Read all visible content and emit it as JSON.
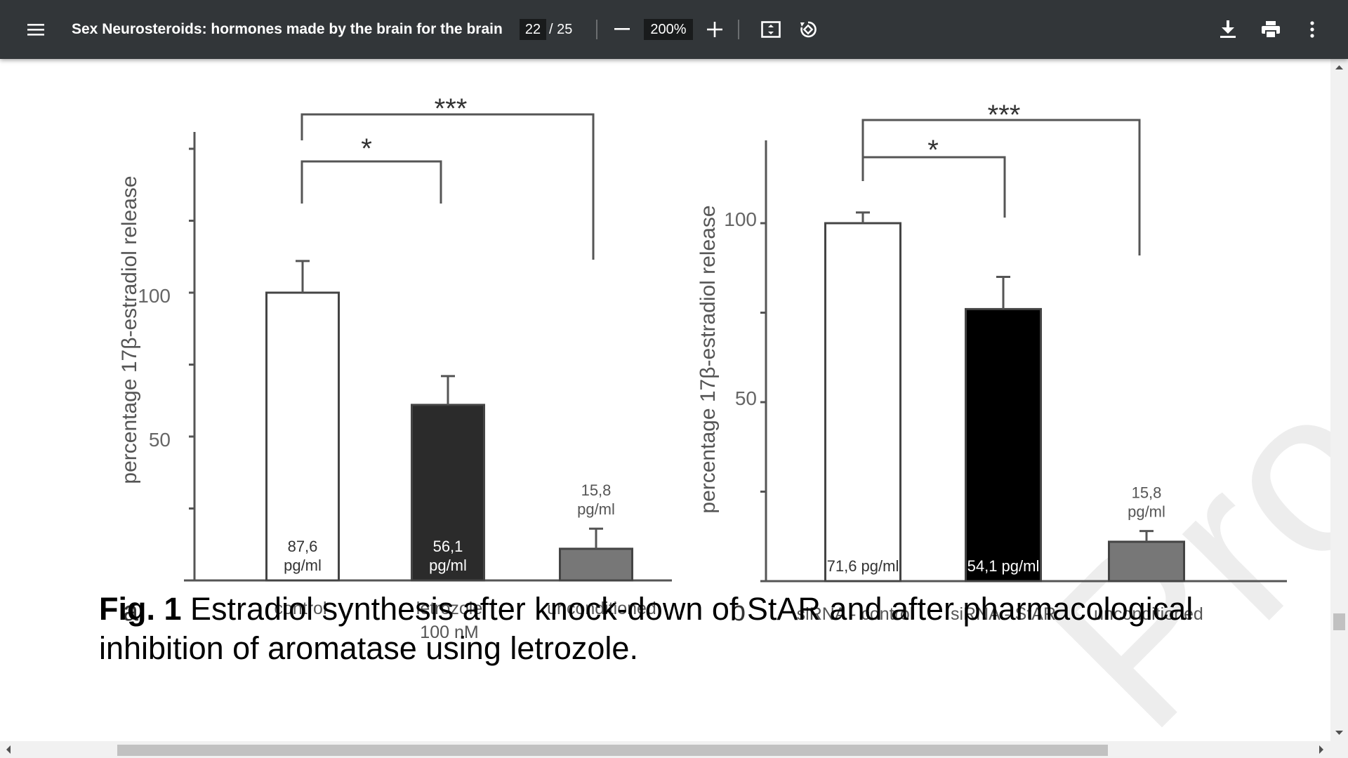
{
  "toolbar": {
    "title": "Sex Neurosteroids: hormones made by the brain for the brain",
    "page_current": "22",
    "page_separator": "/ 25",
    "zoom": "200%",
    "icons": [
      "menu-icon",
      "zoom-out-icon",
      "zoom-in-icon",
      "fit-page-icon",
      "rotate-icon",
      "download-icon",
      "print-icon",
      "more-vert-icon"
    ]
  },
  "figure": {
    "panel_a": {
      "letter": "a",
      "ylabel": "percentage 17β-estradiol release",
      "yticks": [
        "100",
        "50"
      ],
      "sig_outer": "***",
      "sig_inner": "*",
      "colors": [
        "#ffffff",
        "#2b2b2b",
        "#777777"
      ]
    },
    "panel_b": {
      "letter": "b",
      "ylabel": "percentage 17β-estradiol release",
      "yticks": [
        "100",
        "50"
      ],
      "sig_outer": "***",
      "sig_inner": "*",
      "colors": [
        "#ffffff",
        "#000000",
        "#777777"
      ]
    }
  },
  "chart_data": [
    {
      "type": "bar",
      "categories": [
        "control",
        "letrozole 100 nM",
        "unconditioned"
      ],
      "category_lines": [
        [
          "control"
        ],
        [
          "letrozole",
          "100 nM"
        ],
        [
          "unconditioned"
        ]
      ],
      "values": [
        100,
        61,
        11
      ],
      "errors": [
        11,
        10,
        7
      ],
      "bar_labels": [
        [
          "87,6",
          "pg/ml"
        ],
        [
          "56,1",
          "pg/ml"
        ],
        [
          "15,8",
          "pg/ml"
        ]
      ],
      "ylabel": "percentage 17β-estradiol release",
      "yticks": [
        50,
        100
      ],
      "ylim": [
        0,
        155
      ]
    },
    {
      "type": "bar",
      "categories": [
        "siRNA - control",
        "siRNA - StAR",
        "unconditioned"
      ],
      "values": [
        100,
        76,
        11
      ],
      "errors": [
        3,
        9,
        3
      ],
      "bar_labels": [
        [
          "71,6 pg/ml"
        ],
        [
          "54,1 pg/ml"
        ],
        [
          "15,8",
          "pg/ml"
        ]
      ],
      "ylabel": "percentage 17β-estradiol release",
      "yticks": [
        50,
        100
      ],
      "ylim": [
        0,
        120
      ]
    }
  ],
  "caption": {
    "label": "Fig. 1",
    "text": " Estradiol synthesis after knock-down of StAR and after pharmacological inhibition of aromatase using letrozole."
  },
  "watermark": "Proof"
}
